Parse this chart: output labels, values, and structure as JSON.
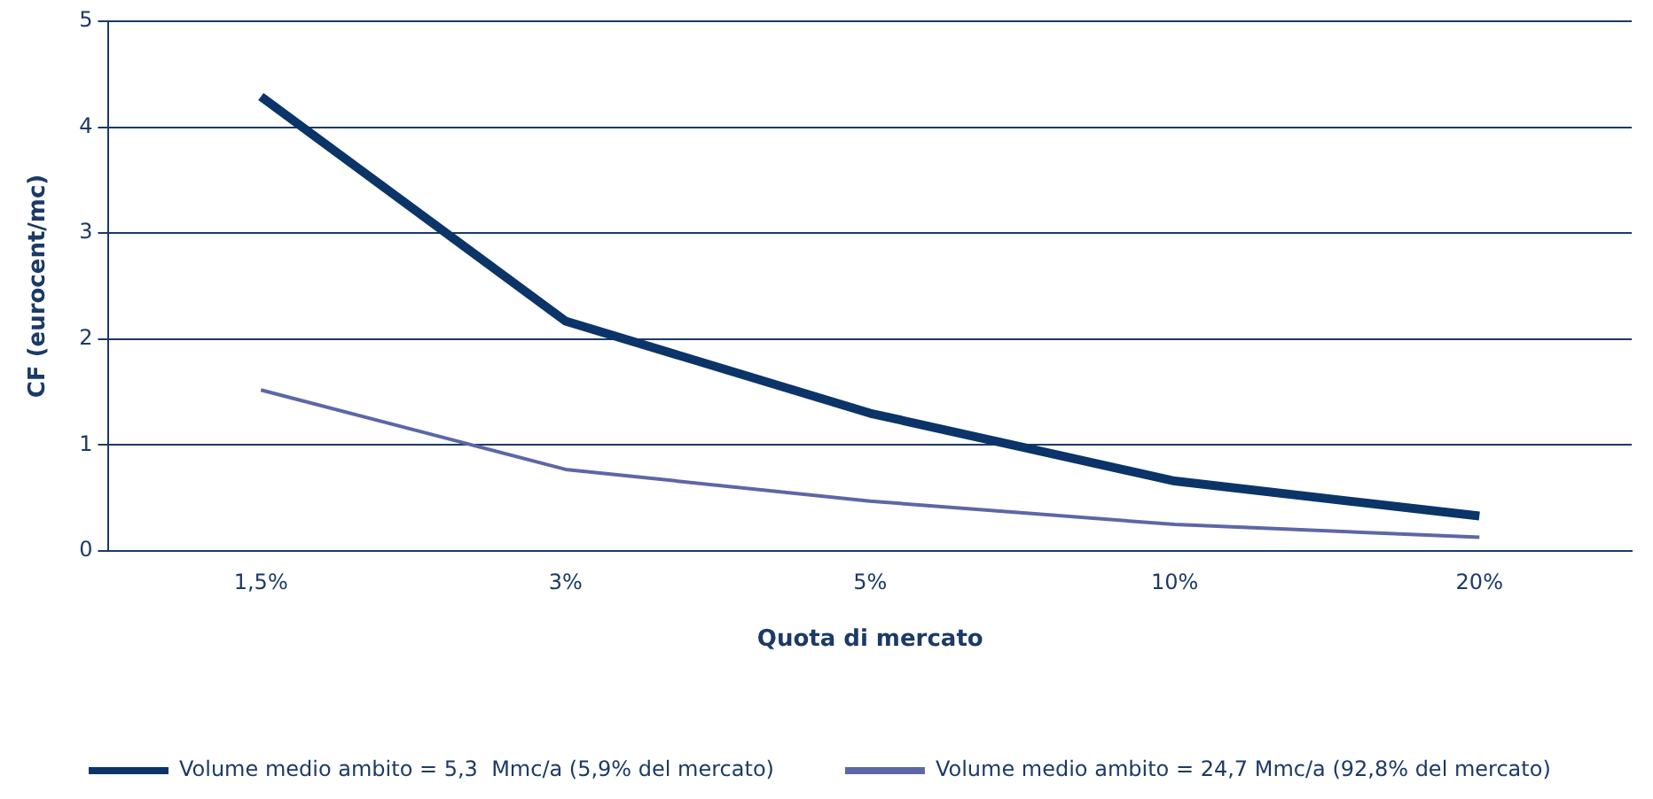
{
  "chart_data": {
    "type": "line",
    "xlabel": "Quota di mercato",
    "ylabel": "CF (eurocent/mc)",
    "categories": [
      "1,5%",
      "3%",
      "5%",
      "10%",
      "20%"
    ],
    "series": [
      {
        "name": "Volume medio ambito = 5,3  Mmc/a (5,9% del mercato)",
        "color": "#0b3468",
        "values": [
          4.29,
          2.17,
          1.3,
          0.66,
          0.33
        ]
      },
      {
        "name": "Volume medio ambito = 24,7 Mmc/a (92,8% del mercato)",
        "color": "#5c67a6",
        "values": [
          1.52,
          0.77,
          0.47,
          0.25,
          0.13
        ]
      }
    ],
    "ylim": [
      0,
      5
    ],
    "yticks": [
      0,
      1,
      2,
      3,
      4,
      5
    ],
    "grid": "y",
    "legend": "bottom",
    "marker": "none"
  }
}
